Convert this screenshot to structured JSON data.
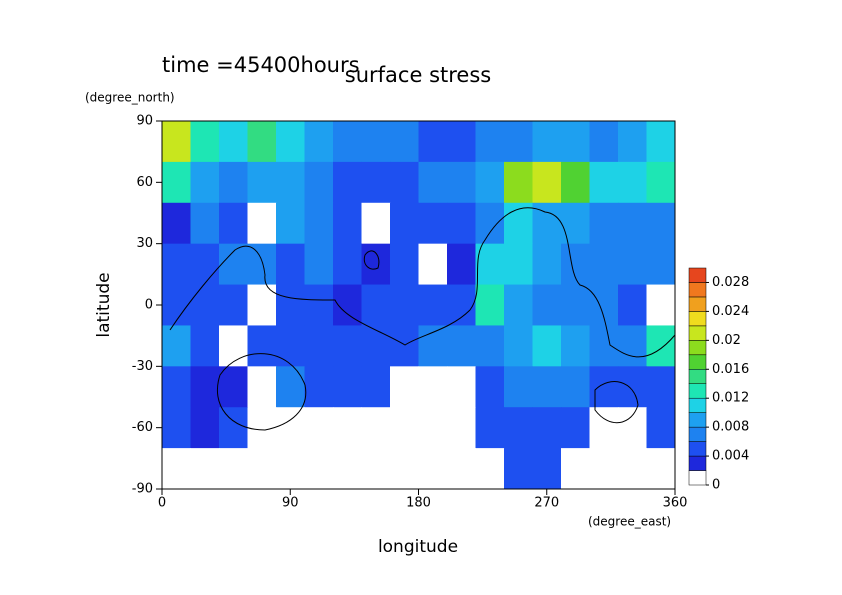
{
  "chart_data": {
    "type": "contour",
    "title": "surface stress",
    "subtitle": "time =45400hours",
    "x_label": "longitude",
    "x_unit": "(degree_east)",
    "y_label": "latitude",
    "y_unit": "(degree_north)",
    "xlim": [
      0,
      360
    ],
    "ylim": [
      -90,
      90
    ],
    "xticks": [
      0,
      90,
      180,
      270,
      360
    ],
    "yticks": [
      -90,
      -60,
      -30,
      0,
      30,
      60,
      90
    ],
    "x": [
      10,
      30,
      50,
      70,
      90,
      110,
      130,
      150,
      170,
      190,
      210,
      230,
      250,
      270,
      290,
      310,
      330,
      350
    ],
    "y": [
      80,
      60,
      40,
      20,
      0,
      -20,
      -40,
      -60,
      -80
    ],
    "values": [
      [
        0.02,
        0.012,
        0.01,
        0.014,
        0.01,
        0.008,
        0.006,
        0.006,
        0.006,
        0.004,
        0.004,
        0.006,
        0.006,
        0.008,
        0.008,
        0.006,
        0.008,
        0.01
      ],
      [
        0.012,
        0.008,
        0.006,
        0.008,
        0.008,
        0.006,
        0.004,
        0.004,
        0.004,
        0.006,
        0.006,
        0.008,
        0.018,
        0.02,
        0.016,
        0.01,
        0.01,
        0.012
      ],
      [
        0.002,
        0.006,
        0.004,
        0,
        0.008,
        0.006,
        0.004,
        0,
        0.004,
        0.004,
        0.004,
        0.006,
        0.01,
        0.008,
        0.008,
        0.006,
        0.006,
        0.006
      ],
      [
        0.004,
        0.004,
        0.006,
        0.006,
        0.004,
        0.006,
        0.004,
        0.002,
        0.004,
        0,
        0.002,
        0.01,
        0.01,
        0.008,
        0.006,
        0.006,
        0.006,
        0.006
      ],
      [
        0.004,
        0.004,
        0.004,
        0,
        0.004,
        0.004,
        0.002,
        0.004,
        0.004,
        0.004,
        0.004,
        0.012,
        0.008,
        0.006,
        0.006,
        0.006,
        0.004,
        0
      ],
      [
        0.008,
        0.004,
        0,
        0.004,
        0.004,
        0.004,
        0.004,
        0.004,
        0.004,
        0.006,
        0.006,
        0.006,
        0.008,
        0.01,
        0.008,
        0.006,
        0.006,
        0.012
      ],
      [
        0.004,
        0.002,
        0.002,
        0,
        0.006,
        0.004,
        0.004,
        0.004,
        0,
        0,
        0,
        0.004,
        0.006,
        0.006,
        0.006,
        0.004,
        0.004,
        0.004
      ],
      [
        0.004,
        0.002,
        0.004,
        0,
        0,
        0,
        0,
        0,
        0,
        0,
        0,
        0.004,
        0.004,
        0.004,
        0.004,
        0,
        0,
        0.004
      ],
      [
        0,
        0,
        0,
        0,
        0,
        0,
        0,
        0,
        0,
        0,
        0,
        0,
        0.004,
        0.004,
        0,
        0,
        0,
        0
      ]
    ],
    "levels": [
      0,
      0.002,
      0.004,
      0.006,
      0.008,
      0.01,
      0.012,
      0.014,
      0.016,
      0.018,
      0.02,
      0.022,
      0.024,
      0.026,
      0.028,
      0.03
    ],
    "colors": [
      "#ffffff",
      "#1e28dc",
      "#1e50f0",
      "#1e82f0",
      "#1ea0f0",
      "#1ed2e6",
      "#1ee6b4",
      "#32dc82",
      "#50d232",
      "#8cdc1e",
      "#c8e61e",
      "#f0dc1e",
      "#f0a01e",
      "#f0781e",
      "#e6461e"
    ],
    "colorbar_ticks": [
      0,
      0.004,
      0.008,
      0.012,
      0.016,
      0.02,
      0.024,
      0.028
    ]
  }
}
